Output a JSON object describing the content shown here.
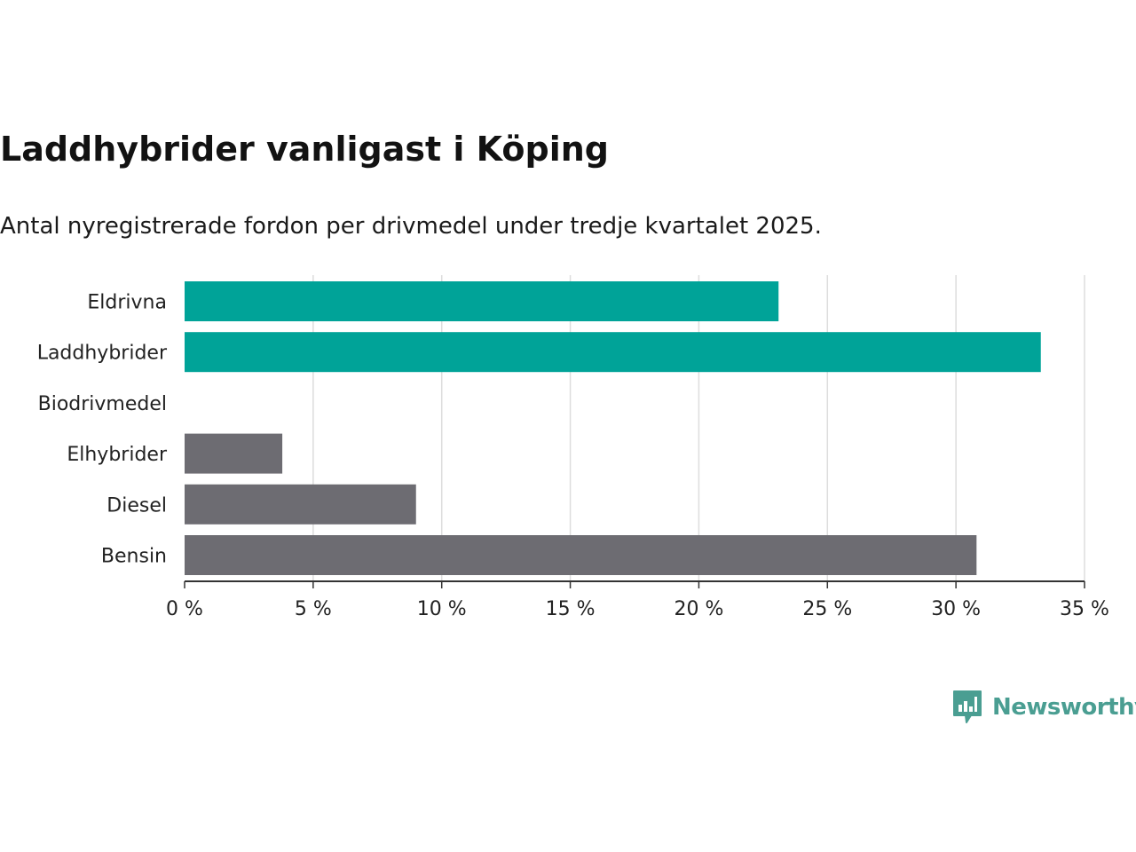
{
  "title": "Laddhybrider vanligast i Köping",
  "subtitle": "Antal nyregistrerade fordon per drivmedel under tredje kvartalet 2025.",
  "brand": {
    "name": "Newsworthy",
    "color": "#4a9e92"
  },
  "colors": {
    "highlight": "#00a398",
    "default": "#6d6c72",
    "grid": "#dddddd",
    "axis": "#333333"
  },
  "chart_data": {
    "type": "bar",
    "orientation": "horizontal",
    "categories": [
      "Eldrivna",
      "Laddhybrider",
      "Biodrivmedel",
      "Elhybrider",
      "Diesel",
      "Bensin"
    ],
    "values": [
      23.1,
      33.3,
      0,
      3.8,
      9.0,
      30.8
    ],
    "highlight": [
      true,
      true,
      false,
      false,
      false,
      false
    ],
    "x_ticks": [
      0,
      5,
      10,
      15,
      20,
      25,
      30,
      35
    ],
    "tick_suffix": " %",
    "xlim": [
      0,
      35
    ],
    "grid": true,
    "xlabel": "",
    "ylabel": ""
  }
}
